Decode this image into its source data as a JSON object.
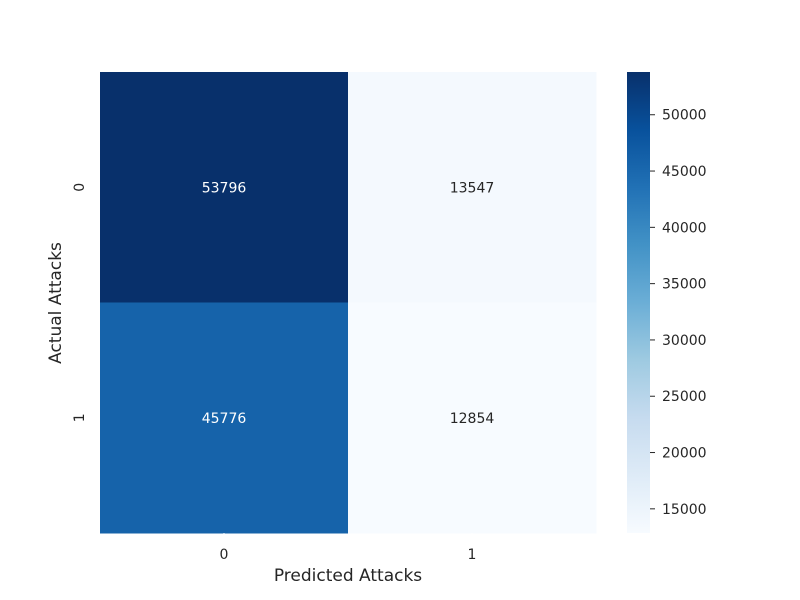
{
  "chart_data": {
    "type": "heatmap",
    "title": "",
    "xlabel": "Predicted Attacks",
    "ylabel": "Actual Attacks",
    "x_categories": [
      "0",
      "1"
    ],
    "y_categories": [
      "0",
      "1"
    ],
    "values": [
      [
        53796,
        13547
      ],
      [
        45776,
        12854
      ]
    ],
    "value_labels": [
      [
        "53796",
        "13547"
      ],
      [
        "45776",
        "12854"
      ]
    ],
    "colormap": "Blues",
    "color_range": [
      12854,
      53796
    ],
    "colorbar_ticks": [
      15000,
      20000,
      25000,
      30000,
      35000,
      40000,
      45000,
      50000
    ],
    "colorbar_tick_labels": [
      "15000",
      "20000",
      "25000",
      "30000",
      "35000",
      "40000",
      "45000",
      "50000"
    ],
    "colorbar_placement": "right",
    "grid": false,
    "legend": "none"
  }
}
